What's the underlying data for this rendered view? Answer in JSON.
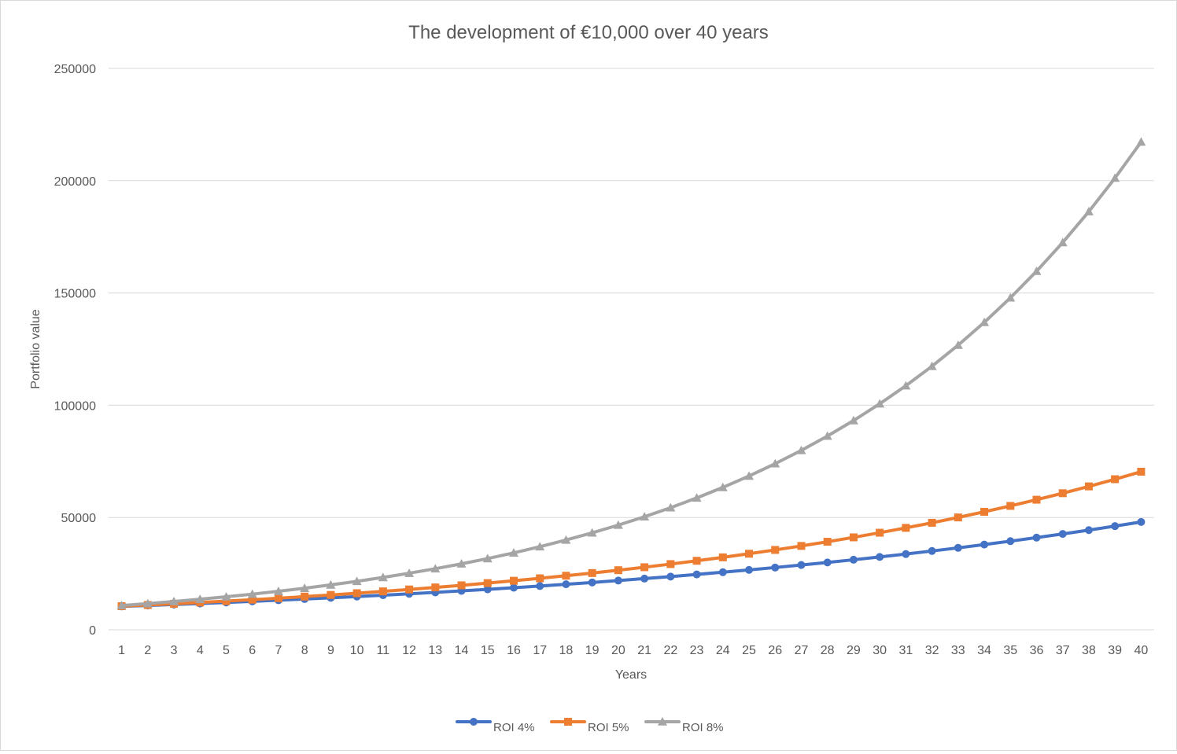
{
  "chart_data": {
    "type": "line",
    "title": "The development of €10,000 over 40 years",
    "xlabel": "Years",
    "ylabel": "Portfolio value",
    "ylim": [
      0,
      250000
    ],
    "yticks": [
      0,
      50000,
      100000,
      150000,
      200000,
      250000
    ],
    "grid": true,
    "legend_position": "bottom",
    "categories": [
      "1",
      "2",
      "3",
      "4",
      "5",
      "6",
      "7",
      "8",
      "9",
      "10",
      "11",
      "12",
      "13",
      "14",
      "15",
      "16",
      "17",
      "18",
      "19",
      "20",
      "21",
      "22",
      "23",
      "24",
      "25",
      "26",
      "27",
      "28",
      "29",
      "30",
      "31",
      "32",
      "33",
      "34",
      "35",
      "36",
      "37",
      "38",
      "39",
      "40"
    ],
    "series": [
      {
        "name": "ROI 4%",
        "color": "#4472c4",
        "marker": "circle",
        "values": [
          10400,
          10816,
          11249,
          11699,
          12167,
          12653,
          13159,
          13686,
          14233,
          14802,
          15395,
          16010,
          16651,
          17317,
          18009,
          18730,
          19479,
          20258,
          21068,
          21911,
          22788,
          23699,
          24647,
          25633,
          26658,
          27725,
          28834,
          29987,
          31187,
          32434,
          33731,
          35081,
          36484,
          37943,
          39461,
          41039,
          42681,
          44388,
          46164,
          48010
        ]
      },
      {
        "name": "ROI 5%",
        "color": "#ed7d31",
        "marker": "square",
        "values": [
          10500,
          11025,
          11576,
          12155,
          12763,
          13401,
          14071,
          14775,
          15513,
          16289,
          17103,
          17959,
          18856,
          19799,
          20789,
          21829,
          22920,
          24066,
          25270,
          26533,
          27860,
          29253,
          30715,
          32251,
          33864,
          35557,
          37335,
          39201,
          41161,
          43219,
          45380,
          47649,
          50032,
          52533,
          55160,
          57918,
          60814,
          63855,
          67048,
          70400
        ]
      },
      {
        "name": "ROI 8%",
        "color": "#a5a5a5",
        "marker": "triangle",
        "values": [
          10800,
          11664,
          12597,
          13605,
          14693,
          15869,
          17138,
          18509,
          19990,
          21589,
          23316,
          25182,
          27196,
          29372,
          31722,
          34259,
          37000,
          39960,
          43157,
          46610,
          50338,
          54365,
          58715,
          63412,
          68485,
          73964,
          79881,
          86271,
          93173,
          100627,
          108677,
          117371,
          126760,
          136901,
          147853,
          159682,
          172456,
          186253,
          201153,
          217245
        ]
      }
    ]
  }
}
